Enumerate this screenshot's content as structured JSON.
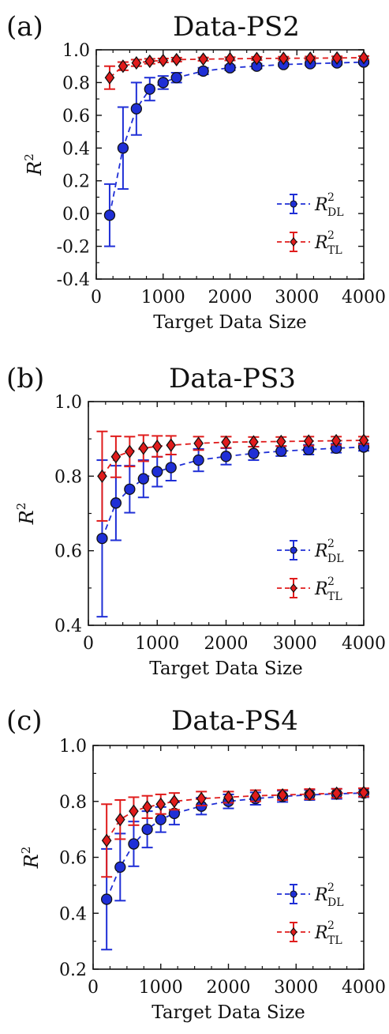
{
  "figure": {
    "x_label": "Target Data Size",
    "y_label": "R",
    "y_label_sup": "2",
    "legend": [
      {
        "base": "R",
        "sup": "2",
        "sub": "DL",
        "color": "#1f2fd6",
        "marker": "circle"
      },
      {
        "base": "R",
        "sup": "2",
        "sub": "TL",
        "color": "#e01c1c",
        "marker": "diamond"
      }
    ]
  },
  "chart_data": [
    {
      "type": "scatter",
      "panel_label": "(a)",
      "title": "Data-PS2",
      "xlim": [
        0,
        4000
      ],
      "ylim": [
        -0.4,
        1.0
      ],
      "x_ticks": [
        0,
        1000,
        2000,
        3000,
        4000
      ],
      "y_ticks": [
        -0.4,
        -0.2,
        0.0,
        0.2,
        0.4,
        0.6,
        0.8,
        1.0
      ],
      "y_tick_labels": [
        "-0.4",
        "-0.2",
        "0.0",
        "0.2",
        "0.4",
        "0.6",
        "0.8",
        "1.0"
      ],
      "legend_position": "lower-right",
      "x": [
        200,
        400,
        600,
        800,
        1000,
        1200,
        1600,
        2000,
        2400,
        2800,
        3200,
        3600,
        4000
      ],
      "series": [
        {
          "name": "R2_DL",
          "color": "#1f2fd6",
          "marker": "circle",
          "values": [
            -0.01,
            0.4,
            0.64,
            0.76,
            0.8,
            0.83,
            0.87,
            0.89,
            0.9,
            0.91,
            0.915,
            0.92,
            0.925
          ],
          "errors": [
            0.19,
            0.25,
            0.16,
            0.07,
            0.04,
            0.03,
            0.02,
            0.015,
            0.015,
            0.01,
            0.01,
            0.01,
            0.01
          ]
        },
        {
          "name": "R2_TL",
          "color": "#e01c1c",
          "marker": "diamond",
          "values": [
            0.83,
            0.9,
            0.92,
            0.93,
            0.935,
            0.94,
            0.943,
            0.945,
            0.947,
            0.948,
            0.949,
            0.95,
            0.952
          ],
          "errors": [
            0.07,
            0.025,
            0.02,
            0.015,
            0.012,
            0.012,
            0.01,
            0.01,
            0.01,
            0.01,
            0.01,
            0.01,
            0.01
          ]
        }
      ]
    },
    {
      "type": "scatter",
      "panel_label": "(b)",
      "title": "Data-PS3",
      "xlim": [
        0,
        4000
      ],
      "ylim": [
        0.4,
        1.0
      ],
      "x_ticks": [
        0,
        1000,
        2000,
        3000,
        4000
      ],
      "y_ticks": [
        0.4,
        0.6,
        0.8,
        1.0
      ],
      "y_tick_labels": [
        "0.4",
        "0.6",
        "0.8",
        "1.0"
      ],
      "legend_position": "lower-right",
      "x": [
        200,
        400,
        600,
        800,
        1000,
        1200,
        1600,
        2000,
        2400,
        2800,
        3200,
        3600,
        4000
      ],
      "series": [
        {
          "name": "R2_DL",
          "color": "#1f2fd6",
          "marker": "circle",
          "values": [
            0.633,
            0.728,
            0.765,
            0.793,
            0.812,
            0.823,
            0.843,
            0.853,
            0.861,
            0.867,
            0.871,
            0.875,
            0.878
          ],
          "errors": [
            0.21,
            0.1,
            0.063,
            0.05,
            0.04,
            0.035,
            0.03,
            0.022,
            0.018,
            0.013,
            0.013,
            0.012,
            0.01
          ]
        },
        {
          "name": "R2_TL",
          "color": "#e01c1c",
          "marker": "diamond",
          "values": [
            0.8,
            0.852,
            0.866,
            0.875,
            0.88,
            0.883,
            0.888,
            0.891,
            0.892,
            0.893,
            0.894,
            0.895,
            0.896
          ],
          "errors": [
            0.12,
            0.055,
            0.04,
            0.035,
            0.028,
            0.025,
            0.018,
            0.015,
            0.013,
            0.012,
            0.012,
            0.011,
            0.01
          ]
        }
      ]
    },
    {
      "type": "scatter",
      "panel_label": "(c)",
      "title": "Data-PS4",
      "xlim": [
        0,
        4000
      ],
      "ylim": [
        0.2,
        1.0
      ],
      "x_ticks": [
        0,
        1000,
        2000,
        3000,
        4000
      ],
      "y_ticks": [
        0.2,
        0.4,
        0.6,
        0.8,
        1.0
      ],
      "y_tick_labels": [
        "0.2",
        "0.4",
        "0.6",
        "0.8",
        "1.0"
      ],
      "legend_position": "lower-right",
      "x": [
        200,
        400,
        600,
        800,
        1000,
        1200,
        1600,
        2000,
        2400,
        2800,
        3200,
        3600,
        4000
      ],
      "series": [
        {
          "name": "R2_DL",
          "color": "#1f2fd6",
          "marker": "circle",
          "values": [
            0.45,
            0.565,
            0.648,
            0.7,
            0.735,
            0.757,
            0.783,
            0.8,
            0.81,
            0.818,
            0.823,
            0.827,
            0.83
          ],
          "errors": [
            0.18,
            0.12,
            0.08,
            0.065,
            0.045,
            0.04,
            0.03,
            0.025,
            0.022,
            0.02,
            0.018,
            0.018,
            0.015
          ]
        },
        {
          "name": "R2_TL",
          "color": "#e01c1c",
          "marker": "diamond",
          "values": [
            0.66,
            0.735,
            0.765,
            0.78,
            0.79,
            0.8,
            0.81,
            0.815,
            0.82,
            0.823,
            0.826,
            0.829,
            0.832
          ],
          "errors": [
            0.13,
            0.07,
            0.05,
            0.04,
            0.035,
            0.03,
            0.025,
            0.02,
            0.02,
            0.018,
            0.018,
            0.016,
            0.015
          ]
        }
      ]
    }
  ]
}
